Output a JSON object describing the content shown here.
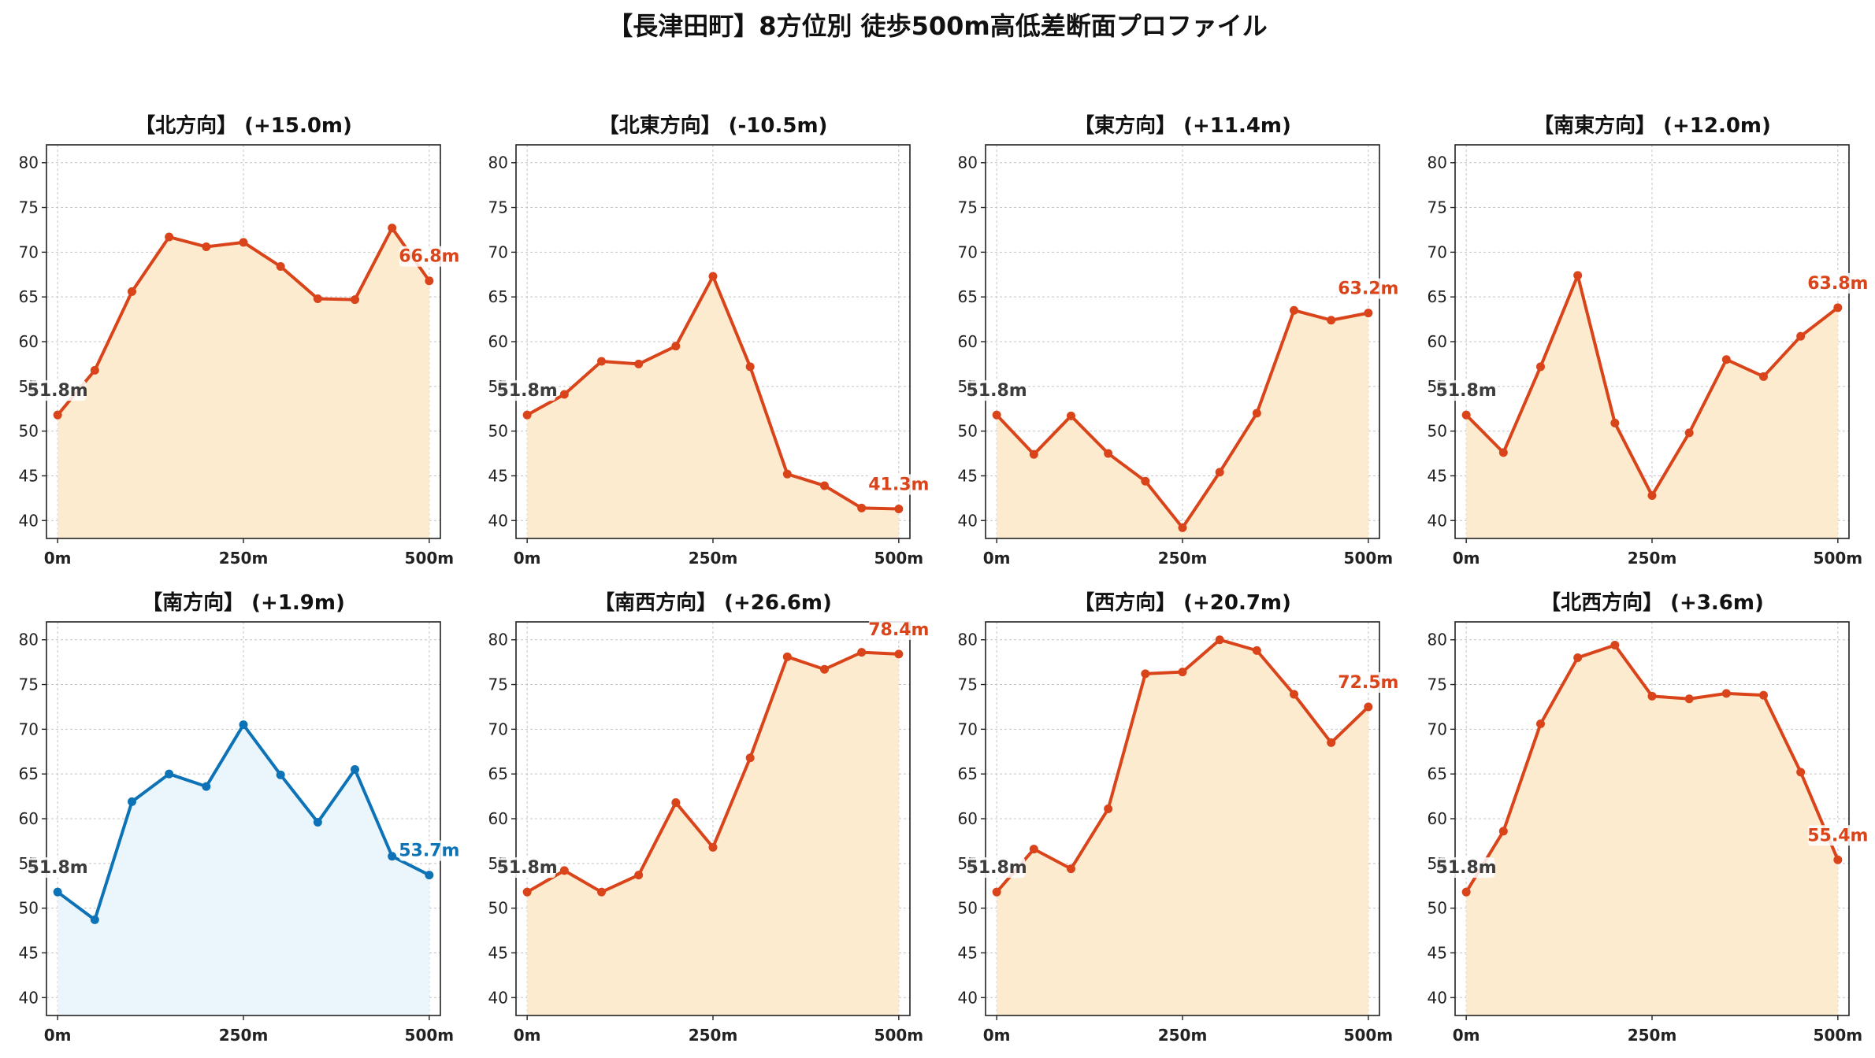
{
  "title": "【長津田町】8方位別 徒歩500m高低差断面プロファイル",
  "colors": {
    "up_line": "#d9441a",
    "up_fill": "#fdebd0",
    "down_line": "#0d73b6",
    "down_fill": "#eaf6fc",
    "start_label": "#3d3d3d",
    "grid": "#c4c4c4",
    "axis": "#222222"
  },
  "chart_data": [
    {
      "type": "area",
      "title": "【北方向】 (+15.0m)",
      "x": [
        0,
        50,
        100,
        150,
        200,
        250,
        300,
        350,
        400,
        450,
        500
      ],
      "values": [
        51.8,
        56.8,
        65.6,
        71.7,
        70.6,
        71.1,
        68.4,
        64.8,
        64.7,
        72.7,
        66.8
      ],
      "start_label": "51.8m",
      "end_label": "66.8m",
      "style": "up",
      "ylim": [
        38,
        82
      ],
      "yticks": [
        40,
        45,
        50,
        55,
        60,
        65,
        70,
        75,
        80
      ],
      "xticks": [
        0,
        250,
        500
      ],
      "xtick_labels": [
        "0m",
        "250m",
        "500m"
      ],
      "grid": true
    },
    {
      "type": "area",
      "title": "【北東方向】 (-10.5m)",
      "x": [
        0,
        50,
        100,
        150,
        200,
        250,
        300,
        350,
        400,
        450,
        500
      ],
      "values": [
        51.8,
        54.1,
        57.8,
        57.5,
        59.5,
        67.3,
        57.2,
        45.2,
        43.9,
        41.4,
        41.3
      ],
      "start_label": "51.8m",
      "end_label": "41.3m",
      "style": "up",
      "ylim": [
        38,
        82
      ],
      "yticks": [
        40,
        45,
        50,
        55,
        60,
        65,
        70,
        75,
        80
      ],
      "xticks": [
        0,
        250,
        500
      ],
      "xtick_labels": [
        "0m",
        "250m",
        "500m"
      ],
      "grid": true
    },
    {
      "type": "area",
      "title": "【東方向】 (+11.4m)",
      "x": [
        0,
        50,
        100,
        150,
        200,
        250,
        300,
        350,
        400,
        450,
        500
      ],
      "values": [
        51.8,
        47.4,
        51.7,
        47.5,
        44.4,
        39.2,
        45.4,
        52.0,
        63.5,
        62.4,
        63.2
      ],
      "start_label": "51.8m",
      "end_label": "63.2m",
      "style": "up",
      "ylim": [
        38,
        82
      ],
      "yticks": [
        40,
        45,
        50,
        55,
        60,
        65,
        70,
        75,
        80
      ],
      "xticks": [
        0,
        250,
        500
      ],
      "xtick_labels": [
        "0m",
        "250m",
        "500m"
      ],
      "grid": true
    },
    {
      "type": "area",
      "title": "【南東方向】 (+12.0m)",
      "x": [
        0,
        50,
        100,
        150,
        200,
        250,
        300,
        350,
        400,
        450,
        500
      ],
      "values": [
        51.8,
        47.6,
        57.2,
        67.4,
        50.9,
        42.8,
        49.8,
        58.0,
        56.1,
        60.6,
        63.8
      ],
      "start_label": "51.8m",
      "end_label": "63.8m",
      "style": "up",
      "ylim": [
        38,
        82
      ],
      "yticks": [
        40,
        45,
        50,
        55,
        60,
        65,
        70,
        75,
        80
      ],
      "xticks": [
        0,
        250,
        500
      ],
      "xtick_labels": [
        "0m",
        "250m",
        "500m"
      ],
      "grid": true
    },
    {
      "type": "area",
      "title": "【南方向】 (+1.9m)",
      "x": [
        0,
        50,
        100,
        150,
        200,
        250,
        300,
        350,
        400,
        450,
        500
      ],
      "values": [
        51.8,
        48.7,
        61.9,
        65.0,
        63.6,
        70.5,
        64.9,
        59.6,
        65.5,
        55.8,
        53.7
      ],
      "start_label": "51.8m",
      "end_label": "53.7m",
      "style": "down",
      "ylim": [
        38,
        82
      ],
      "yticks": [
        40,
        45,
        50,
        55,
        60,
        65,
        70,
        75,
        80
      ],
      "xticks": [
        0,
        250,
        500
      ],
      "xtick_labels": [
        "0m",
        "250m",
        "500m"
      ],
      "grid": true
    },
    {
      "type": "area",
      "title": "【南西方向】 (+26.6m)",
      "x": [
        0,
        50,
        100,
        150,
        200,
        250,
        300,
        350,
        400,
        450,
        500
      ],
      "values": [
        51.8,
        54.2,
        51.8,
        53.7,
        61.8,
        56.8,
        66.8,
        78.1,
        76.7,
        78.6,
        78.4
      ],
      "start_label": "51.8m",
      "end_label": "78.4m",
      "style": "up",
      "ylim": [
        38,
        82
      ],
      "yticks": [
        40,
        45,
        50,
        55,
        60,
        65,
        70,
        75,
        80
      ],
      "xticks": [
        0,
        250,
        500
      ],
      "xtick_labels": [
        "0m",
        "250m",
        "500m"
      ],
      "grid": true
    },
    {
      "type": "area",
      "title": "【西方向】 (+20.7m)",
      "x": [
        0,
        50,
        100,
        150,
        200,
        250,
        300,
        350,
        400,
        450,
        500
      ],
      "values": [
        51.8,
        56.6,
        54.4,
        61.1,
        76.2,
        76.4,
        80.0,
        78.8,
        73.9,
        68.5,
        72.5
      ],
      "start_label": "51.8m",
      "end_label": "72.5m",
      "style": "up",
      "ylim": [
        38,
        82
      ],
      "yticks": [
        40,
        45,
        50,
        55,
        60,
        65,
        70,
        75,
        80
      ],
      "xticks": [
        0,
        250,
        500
      ],
      "xtick_labels": [
        "0m",
        "250m",
        "500m"
      ],
      "grid": true
    },
    {
      "type": "area",
      "title": "【北西方向】 (+3.6m)",
      "x": [
        0,
        50,
        100,
        150,
        200,
        250,
        300,
        350,
        400,
        450,
        500
      ],
      "values": [
        51.8,
        58.6,
        70.6,
        78.0,
        79.4,
        73.7,
        73.4,
        74.0,
        73.8,
        65.2,
        55.4
      ],
      "start_label": "51.8m",
      "end_label": "55.4m",
      "style": "up",
      "ylim": [
        38,
        82
      ],
      "yticks": [
        40,
        45,
        50,
        55,
        60,
        65,
        70,
        75,
        80
      ],
      "xticks": [
        0,
        250,
        500
      ],
      "xtick_labels": [
        "0m",
        "250m",
        "500m"
      ],
      "grid": true
    }
  ]
}
